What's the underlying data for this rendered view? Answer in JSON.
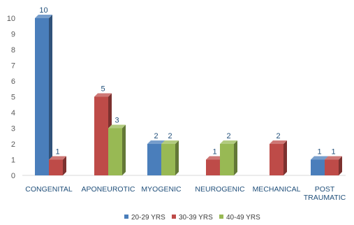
{
  "chart_data": {
    "type": "bar",
    "title": "",
    "xlabel": "",
    "ylabel": "",
    "ylim": [
      0,
      10
    ],
    "yticks": [
      0,
      1,
      2,
      3,
      4,
      5,
      6,
      7,
      8,
      9,
      10
    ],
    "grid": false,
    "legend_position": "bottom",
    "categories": [
      [
        "CONGENITAL"
      ],
      [
        "APONEUROTIC"
      ],
      [
        "MYOGENIC"
      ],
      [
        "NEUROGENIC"
      ],
      [
        "MECHANICAL"
      ],
      [
        "POST",
        "TRAUMATIC"
      ]
    ],
    "series": [
      {
        "name": "20-29 YRS",
        "color": "#4a7ebb",
        "values": [
          10,
          null,
          2,
          null,
          null,
          1
        ]
      },
      {
        "name": "30-39 YRS",
        "color": "#be4b48",
        "values": [
          1,
          5,
          null,
          1,
          2,
          1
        ]
      },
      {
        "name": "40-49 YRS",
        "color": "#98b954",
        "values": [
          null,
          3,
          2,
          2,
          null,
          null
        ]
      }
    ]
  }
}
